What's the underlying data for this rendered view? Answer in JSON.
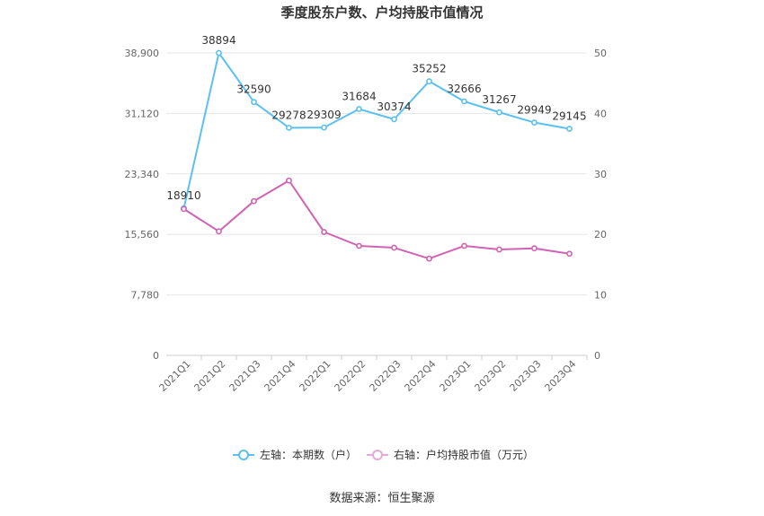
{
  "chart_data": {
    "type": "line",
    "title": "季度股东户数、户均持股市值情况",
    "categories": [
      "2021Q1",
      "2021Q2",
      "2021Q3",
      "2021Q4",
      "2022Q1",
      "2022Q2",
      "2022Q3",
      "2022Q4",
      "2023Q1",
      "2023Q2",
      "2023Q3",
      "2023Q4"
    ],
    "series": [
      {
        "name": "左轴：本期数（户）",
        "axis": "left",
        "color": "#5bc0f0",
        "values": [
          18910,
          38894,
          32590,
          29278,
          29309,
          31684,
          30374,
          35252,
          32666,
          31267,
          29949,
          29145
        ],
        "labels": [
          "18910",
          "38894",
          "32590",
          "29278",
          "29309",
          "31684",
          "30374",
          "35252",
          "32666",
          "31267",
          "29949",
          "29145"
        ]
      },
      {
        "name": "右轴：户均持股市值（万元）",
        "axis": "right",
        "color": "#d063b3",
        "values": [
          24.2,
          20.5,
          25.5,
          28.9,
          20.4,
          18.1,
          17.8,
          16.0,
          18.1,
          17.5,
          17.7,
          16.8
        ]
      }
    ],
    "y_left": {
      "ticks": [
        "0",
        "7,780",
        "15,560",
        "23,340",
        "31,120",
        "38,900"
      ],
      "lim": [
        0,
        38900
      ]
    },
    "y_right": {
      "ticks": [
        "0",
        "10",
        "20",
        "30",
        "40",
        "50"
      ],
      "lim": [
        0,
        50
      ]
    },
    "legend_position": "bottom",
    "grid": true
  },
  "source": "数据来源：恒生聚源"
}
